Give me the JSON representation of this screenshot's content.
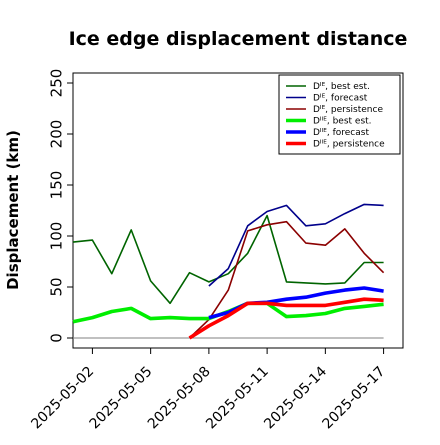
{
  "chart_data": {
    "type": "line",
    "title": "Ice edge displacement distance",
    "ylabel": "Displacement (km)",
    "xlabel": "",
    "ylim": [
      0,
      250
    ],
    "yticks": [
      0,
      50,
      100,
      150,
      200,
      250
    ],
    "xlim": [
      "2025-05-01",
      "2025-05-18"
    ],
    "xticks": [
      {
        "date": "2025-05-02",
        "label": "2025-05-02",
        "color": "#000000"
      },
      {
        "date": "2025-05-05",
        "label": "2025-05-05",
        "color": "#000000"
      },
      {
        "date": "2025-05-08",
        "label": "2025-05-08",
        "color": "#228b22"
      },
      {
        "date": "2025-05-11",
        "label": "2025-05-11",
        "color": "#000000"
      },
      {
        "date": "2025-05-14",
        "label": "2025-05-14",
        "color": "#000000"
      },
      {
        "date": "2025-05-17",
        "label": "2025-05-17",
        "color": "#000000"
      }
    ],
    "legend_position": "top-right",
    "zero_line": {
      "from": "2025-05-01",
      "to": "2025-05-17",
      "value": 0,
      "color": "#808080"
    },
    "series": [
      {
        "name": "Dᴵᴱ, best est.",
        "color": "#006400",
        "width": 1.6,
        "points": [
          [
            "2025-05-01",
            94
          ],
          [
            "2025-05-02",
            96
          ],
          [
            "2025-05-03",
            63
          ],
          [
            "2025-05-04",
            106
          ],
          [
            "2025-05-05",
            56
          ],
          [
            "2025-05-06",
            34
          ],
          [
            "2025-05-07",
            64
          ],
          [
            "2025-05-08",
            55
          ],
          [
            "2025-05-09",
            63
          ],
          [
            "2025-05-10",
            83
          ],
          [
            "2025-05-11",
            120
          ],
          [
            "2025-05-12",
            55
          ],
          [
            "2025-05-13",
            54
          ],
          [
            "2025-05-14",
            53
          ],
          [
            "2025-05-15",
            54
          ],
          [
            "2025-05-16",
            74
          ],
          [
            "2025-05-17",
            74
          ]
        ]
      },
      {
        "name": "Dᴵᴱ, forecast",
        "color": "#00008b",
        "width": 1.6,
        "points": [
          [
            "2025-05-08",
            51
          ],
          [
            "2025-05-09",
            68
          ],
          [
            "2025-05-10",
            110
          ],
          [
            "2025-05-11",
            124
          ],
          [
            "2025-05-12",
            130
          ],
          [
            "2025-05-13",
            110
          ],
          [
            "2025-05-14",
            112
          ],
          [
            "2025-05-15",
            122
          ],
          [
            "2025-05-16",
            131
          ],
          [
            "2025-05-17",
            130
          ]
        ]
      },
      {
        "name": "Dᴵᴱ, persistence",
        "color": "#8b0000",
        "width": 1.6,
        "points": [
          [
            "2025-05-07",
            0
          ],
          [
            "2025-05-08",
            18
          ],
          [
            "2025-05-09",
            47
          ],
          [
            "2025-05-10",
            105
          ],
          [
            "2025-05-11",
            111
          ],
          [
            "2025-05-12",
            114
          ],
          [
            "2025-05-13",
            93
          ],
          [
            "2025-05-14",
            91
          ],
          [
            "2025-05-15",
            107
          ],
          [
            "2025-05-16",
            83
          ],
          [
            "2025-05-17",
            64
          ]
        ]
      },
      {
        "name": "Dᴵᴵᴱ, best est.",
        "color": "#00ee00",
        "width": 3.6,
        "points": [
          [
            "2025-05-01",
            16
          ],
          [
            "2025-05-02",
            20
          ],
          [
            "2025-05-03",
            26
          ],
          [
            "2025-05-04",
            29
          ],
          [
            "2025-05-05",
            19
          ],
          [
            "2025-05-06",
            20
          ],
          [
            "2025-05-07",
            19
          ],
          [
            "2025-05-08",
            19
          ],
          [
            "2025-05-09",
            26
          ],
          [
            "2025-05-10",
            34
          ],
          [
            "2025-05-11",
            34
          ],
          [
            "2025-05-12",
            21
          ],
          [
            "2025-05-13",
            22
          ],
          [
            "2025-05-14",
            24
          ],
          [
            "2025-05-15",
            29
          ],
          [
            "2025-05-16",
            31
          ],
          [
            "2025-05-17",
            33
          ]
        ]
      },
      {
        "name": "Dᴵᴵᴱ, forecast",
        "color": "#0000ff",
        "width": 3.6,
        "points": [
          [
            "2025-05-08",
            20
          ],
          [
            "2025-05-09",
            25
          ],
          [
            "2025-05-10",
            34
          ],
          [
            "2025-05-11",
            35
          ],
          [
            "2025-05-12",
            38
          ],
          [
            "2025-05-13",
            40
          ],
          [
            "2025-05-14",
            44
          ],
          [
            "2025-05-15",
            47
          ],
          [
            "2025-05-16",
            49
          ],
          [
            "2025-05-17",
            46
          ]
        ]
      },
      {
        "name": "Dᴵᴵᴱ, persistence",
        "color": "#ff0000",
        "width": 3.6,
        "points": [
          [
            "2025-05-07",
            0
          ],
          [
            "2025-05-08",
            12
          ],
          [
            "2025-05-09",
            22
          ],
          [
            "2025-05-10",
            34
          ],
          [
            "2025-05-11",
            34
          ],
          [
            "2025-05-12",
            32
          ],
          [
            "2025-05-13",
            32
          ],
          [
            "2025-05-14",
            32
          ],
          [
            "2025-05-15",
            35
          ],
          [
            "2025-05-16",
            38
          ],
          [
            "2025-05-17",
            37
          ]
        ]
      }
    ]
  }
}
